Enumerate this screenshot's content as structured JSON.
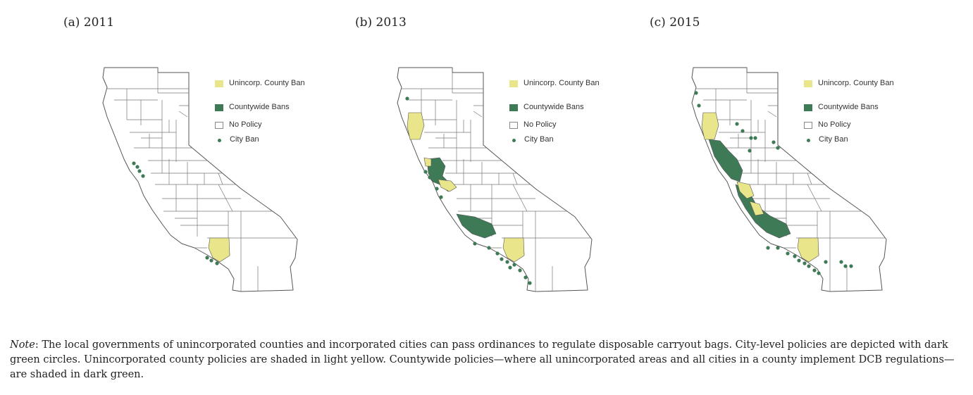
{
  "colors": {
    "unincorp_yellow": "#e8e58a",
    "countywide_green": "#3f7a57",
    "city_dot": "#3f7a57",
    "no_policy": "#ffffff",
    "border": "#555555"
  },
  "legend": {
    "unincorp_label": "Unincorp. County Ban",
    "countywide_label": "Countywide Bans",
    "no_policy_label": "No Policy",
    "city_label": "City Ban"
  },
  "panels": [
    {
      "title": "(a) 2011"
    },
    {
      "title": "(b) 2013"
    },
    {
      "title": "(c) 2015"
    }
  ],
  "note": {
    "lead": "Note",
    "text": ": The local governments of unincorporated counties and incorporated cities can pass ordinances to regulate disposable carryout bags. City-level policies are depicted with dark green circles. Unincorporated county policies are shaded in light yellow. Countywide policies—where all unincorporated areas and all cities in a county implement DCB regulations—are shaded in dark green."
  }
}
